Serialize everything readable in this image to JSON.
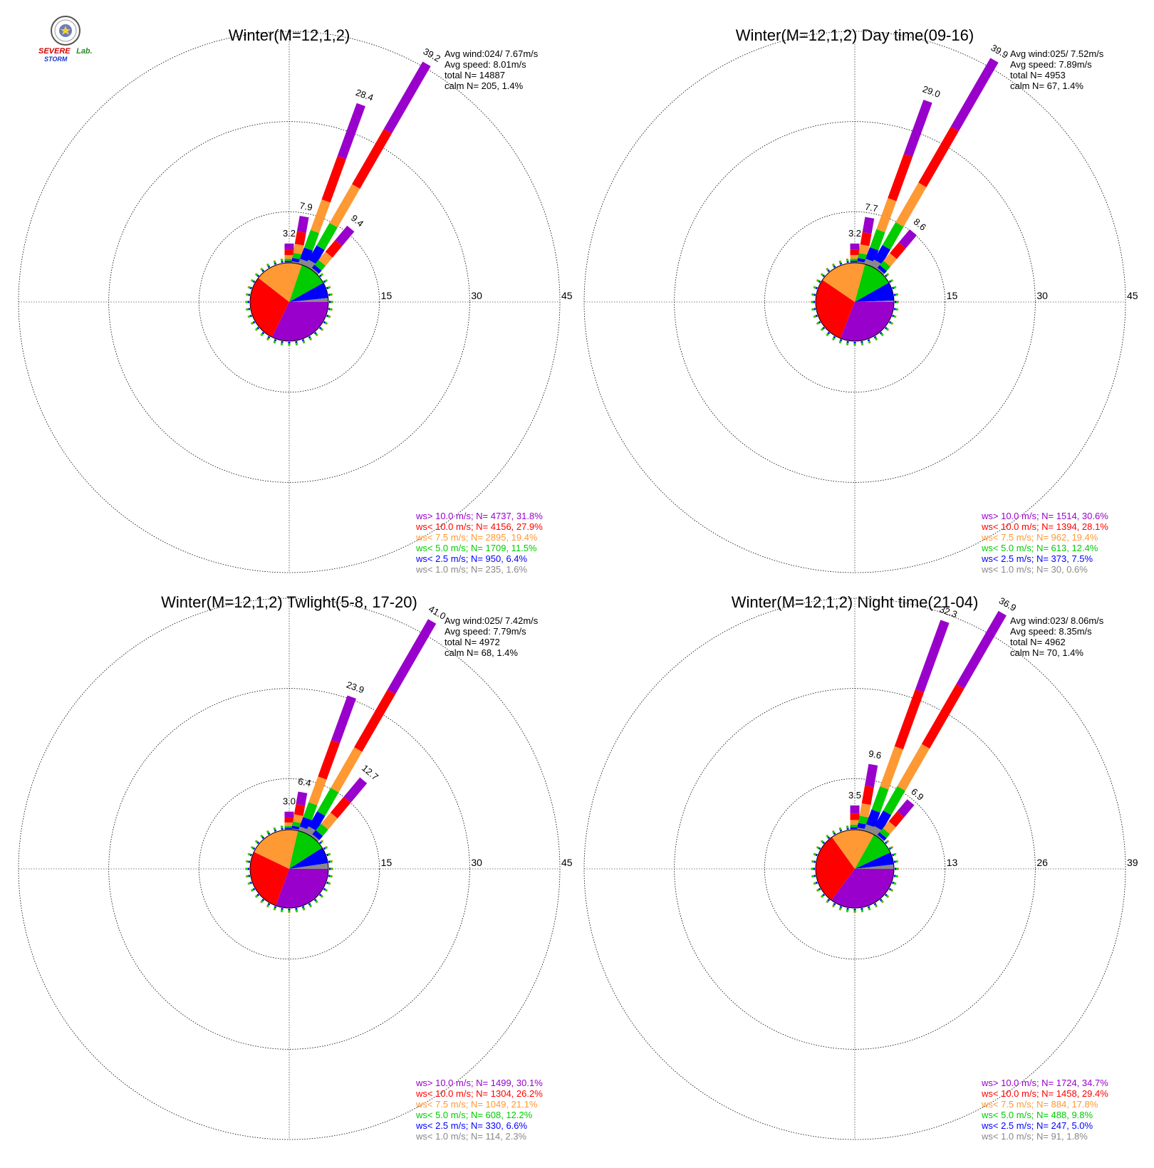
{
  "logo": {
    "line1": "SEVERE",
    "line2": "STORM",
    "line3": "Lab."
  },
  "bin_colors": {
    "gt10": "#9900cc",
    "lt10": "#ff0000",
    "lt7_5": "#ff9933",
    "lt5": "#00cc00",
    "lt2_5": "#0000ff",
    "lt1": "#888888"
  },
  "chart_data": [
    {
      "type": "windrose",
      "title": "Winter(M=12,1,2)",
      "ring_labels": [
        "15",
        "30",
        "45"
      ],
      "rmax": 45,
      "stats": [
        "Avg wind:024/ 7.67m/s",
        "Avg speed: 8.01m/s",
        "total N=      14887",
        "calm N=    205,   1.4%"
      ],
      "spokes": [
        {
          "dir": 0,
          "total": 3.2,
          "label": "3.2"
        },
        {
          "dir": 10,
          "total": 7.9,
          "label": "7.9"
        },
        {
          "dir": 20,
          "total": 28.4,
          "label": "28.4"
        },
        {
          "dir": 30,
          "total": 39.2,
          "label": "39.2"
        },
        {
          "dir": 40,
          "total": 9.4,
          "label": "9.4"
        }
      ],
      "pie": [
        31.8,
        27.9,
        19.4,
        11.5,
        6.4,
        1.6
      ],
      "legend": [
        {
          "text": "ws> 10.0 m/s; N=  4737, 31.8%",
          "color": "#9900cc"
        },
        {
          "text": "ws< 10.0 m/s; N=  4156, 27.9%",
          "color": "#ff0000"
        },
        {
          "text": "ws<  7.5 m/s; N=  2895, 19.4%",
          "color": "#ff9933"
        },
        {
          "text": "ws<  5.0 m/s; N=  1709, 11.5%",
          "color": "#00cc00"
        },
        {
          "text": "ws<  2.5 m/s; N=   950,  6.4%",
          "color": "#0000ff"
        },
        {
          "text": "ws<  1.0 m/s; N=   235,  1.6%",
          "color": "#888888"
        }
      ]
    },
    {
      "type": "windrose",
      "title": "Winter(M=12,1,2) Day time(09-16)",
      "ring_labels": [
        "15",
        "30",
        "45"
      ],
      "rmax": 45,
      "stats": [
        "Avg wind:025/ 7.52m/s",
        "Avg speed: 7.89m/s",
        "total N=       4953",
        "calm N=     67,   1.4%"
      ],
      "spokes": [
        {
          "dir": 0,
          "total": 3.2,
          "label": "3.2"
        },
        {
          "dir": 10,
          "total": 7.7,
          "label": "7.7"
        },
        {
          "dir": 20,
          "total": 29.0,
          "label": "29.0"
        },
        {
          "dir": 30,
          "total": 39.9,
          "label": "39.9"
        },
        {
          "dir": 40,
          "total": 8.6,
          "label": "8.6"
        }
      ],
      "pie": [
        30.6,
        28.1,
        19.4,
        12.4,
        7.5,
        0.6
      ],
      "legend": [
        {
          "text": "ws> 10.0 m/s; N=  1514, 30.6%",
          "color": "#9900cc"
        },
        {
          "text": "ws< 10.0 m/s; N=  1394, 28.1%",
          "color": "#ff0000"
        },
        {
          "text": "ws<  7.5 m/s; N=   962, 19.4%",
          "color": "#ff9933"
        },
        {
          "text": "ws<  5.0 m/s; N=   613, 12.4%",
          "color": "#00cc00"
        },
        {
          "text": "ws<  2.5 m/s; N=   373,  7.5%",
          "color": "#0000ff"
        },
        {
          "text": "ws<  1.0 m/s; N=    30,  0.6%",
          "color": "#888888"
        }
      ]
    },
    {
      "type": "windrose",
      "title": "Winter(M=12,1,2) Twlight(5-8, 17-20)",
      "ring_labels": [
        "15",
        "30",
        "45"
      ],
      "rmax": 45,
      "stats": [
        "Avg wind:025/ 7.42m/s",
        "Avg speed: 7.79m/s",
        "total N=       4972",
        "calm N=     68,   1.4%"
      ],
      "spokes": [
        {
          "dir": 0,
          "total": 3.0,
          "label": "3.0"
        },
        {
          "dir": 10,
          "total": 6.4,
          "label": "6.4"
        },
        {
          "dir": 20,
          "total": 23.9,
          "label": "23.9"
        },
        {
          "dir": 30,
          "total": 41.0,
          "label": "41.0"
        },
        {
          "dir": 40,
          "total": 12.7,
          "label": "12.7"
        }
      ],
      "pie": [
        30.1,
        26.2,
        21.1,
        12.2,
        6.6,
        2.3
      ],
      "legend": [
        {
          "text": "ws> 10.0 m/s; N=  1499, 30.1%",
          "color": "#9900cc"
        },
        {
          "text": "ws< 10.0 m/s; N=  1304, 26.2%",
          "color": "#ff0000"
        },
        {
          "text": "ws<  7.5 m/s; N=  1049, 21.1%",
          "color": "#ff9933"
        },
        {
          "text": "ws<  5.0 m/s; N=   608, 12.2%",
          "color": "#00cc00"
        },
        {
          "text": "ws<  2.5 m/s; N=   330,  6.6%",
          "color": "#0000ff"
        },
        {
          "text": "ws<  1.0 m/s; N=   114,  2.3%",
          "color": "#888888"
        }
      ]
    },
    {
      "type": "windrose",
      "title": "Winter(M=12,1,2) Night time(21-04)",
      "ring_labels": [
        "13",
        "26",
        "39"
      ],
      "rmax": 39,
      "stats": [
        "Avg wind:023/ 8.06m/s",
        "Avg speed: 8.35m/s",
        "total N=       4962",
        "calm N=     70,   1.4%"
      ],
      "spokes": [
        {
          "dir": 0,
          "total": 3.5,
          "label": "3.5"
        },
        {
          "dir": 10,
          "total": 9.6,
          "label": "9.6"
        },
        {
          "dir": 20,
          "total": 32.3,
          "label": "32.3"
        },
        {
          "dir": 30,
          "total": 36.9,
          "label": "36.9"
        },
        {
          "dir": 40,
          "total": 6.9,
          "label": "6.9"
        }
      ],
      "pie": [
        34.7,
        29.4,
        17.8,
        9.8,
        5.0,
        1.8
      ],
      "legend": [
        {
          "text": "ws> 10.0 m/s; N=  1724, 34.7%",
          "color": "#9900cc"
        },
        {
          "text": "ws< 10.0 m/s; N=  1458, 29.4%",
          "color": "#ff0000"
        },
        {
          "text": "ws<  7.5 m/s; N=   884, 17.8%",
          "color": "#ff9933"
        },
        {
          "text": "ws<  5.0 m/s; N=   488,  9.8%",
          "color": "#00cc00"
        },
        {
          "text": "ws<  2.5 m/s; N=   247,  5.0%",
          "color": "#0000ff"
        },
        {
          "text": "ws<  1.0 m/s; N=    91,  1.8%",
          "color": "#888888"
        }
      ]
    }
  ]
}
